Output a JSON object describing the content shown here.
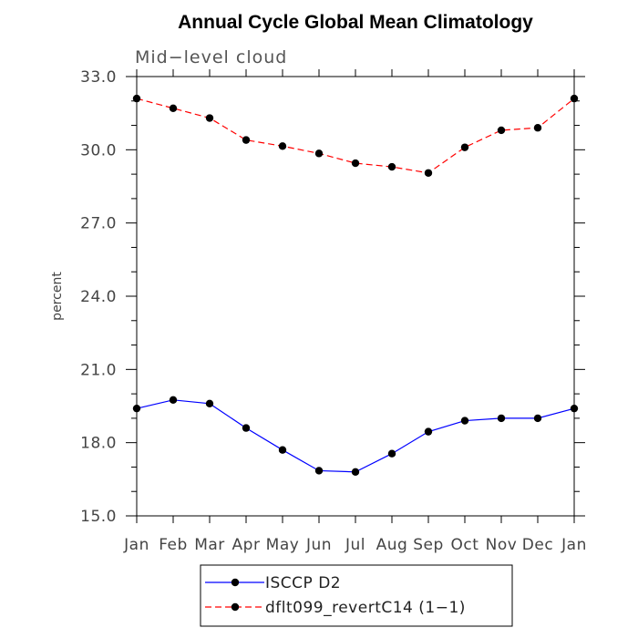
{
  "chart_data": {
    "type": "line",
    "title": "Annual Cycle Global Mean Climatology",
    "subtitle": "Mid-level cloud",
    "xlabel": "",
    "ylabel": "percent",
    "categories": [
      "Jan",
      "Feb",
      "Mar",
      "Apr",
      "May",
      "Jun",
      "Jul",
      "Aug",
      "Sep",
      "Oct",
      "Nov",
      "Dec",
      "Jan"
    ],
    "ylim": [
      15.0,
      33.0
    ],
    "yticks": [
      "15.0",
      "18.0",
      "21.0",
      "24.0",
      "27.0",
      "30.0",
      "33.0"
    ],
    "grid": false,
    "legend_position": "bottom-center",
    "series": [
      {
        "name": "ISCCP D2",
        "color": "#0000ff",
        "line_style": "solid",
        "marker": "filled-circle",
        "values": [
          19.4,
          19.75,
          19.6,
          18.6,
          17.7,
          16.85,
          16.8,
          17.55,
          18.45,
          18.9,
          19.0,
          19.0,
          19.4
        ]
      },
      {
        "name": "dflt099_revertC14 (1-1)",
        "color": "#ff0000",
        "line_style": "dashed",
        "marker": "filled-circle",
        "values": [
          32.1,
          31.7,
          31.3,
          30.4,
          30.15,
          29.85,
          29.45,
          29.3,
          29.05,
          30.1,
          30.8,
          30.9,
          32.1
        ]
      }
    ]
  }
}
